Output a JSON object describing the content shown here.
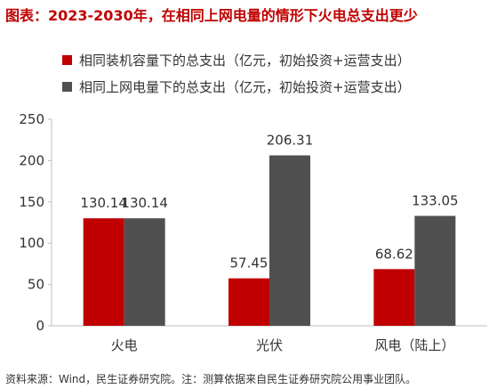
{
  "title": "图表：2023-2030年，在相同上网电量的情形下火电总支出更少",
  "footer": "资料来源：Wind，民生证券研究院。注：测算依据来自民生证券研究院公用事业团队。",
  "colors": {
    "series_1": "#c00000",
    "series_2": "#505050",
    "title": "#c00000"
  },
  "chart_data": {
    "type": "bar",
    "categories": [
      "火电",
      "光伏",
      "风电（陆上）"
    ],
    "series": [
      {
        "name": "相同装机容量下的总支出（亿元，初始投资+运营支出）",
        "values": [
          130.14,
          57.45,
          68.62
        ]
      },
      {
        "name": "相同上网电量下的总支出（亿元，初始投资+运营支出）",
        "values": [
          130.14,
          206.31,
          133.05
        ]
      }
    ],
    "ylim": [
      0,
      250
    ],
    "yticks": [
      "0",
      "50",
      "100",
      "150",
      "200",
      "250"
    ],
    "legend": "top-left"
  }
}
